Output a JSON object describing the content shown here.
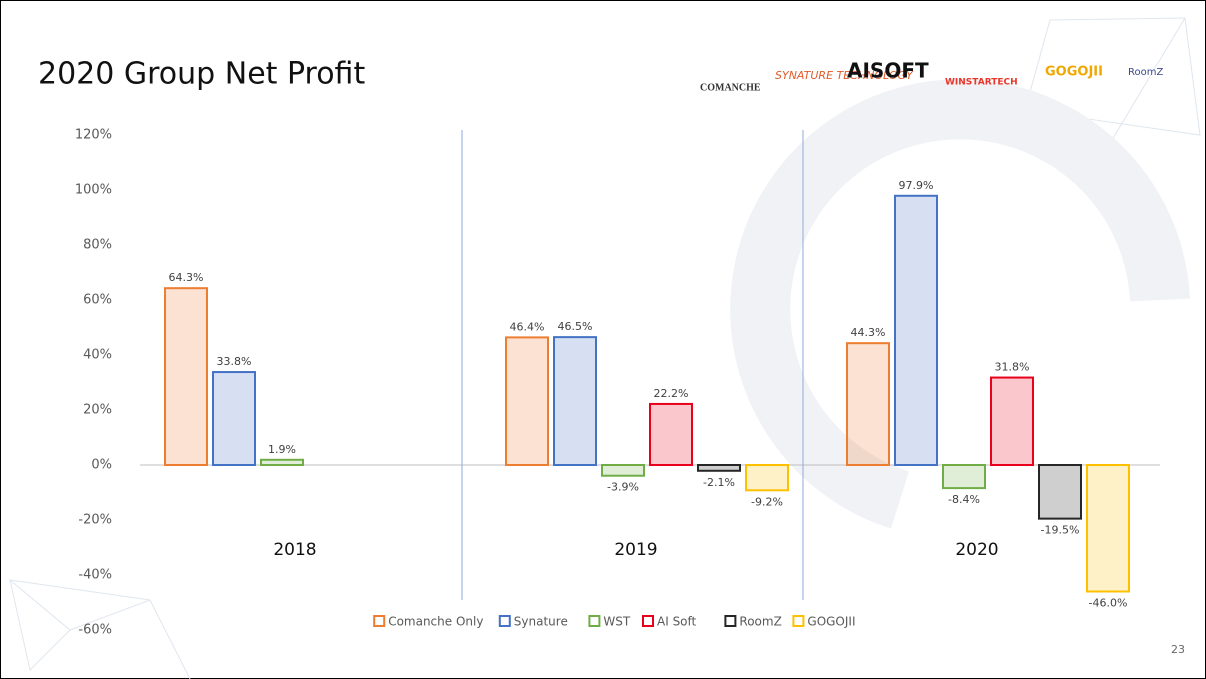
{
  "title": "2020 Group Net Profit",
  "logos": [
    "COMANCHE",
    "SYNATURE TECHNOLOGY",
    "AISOFT",
    "WINSTARTECH",
    "GOGOJII",
    "RoomZ"
  ],
  "page_number": "23",
  "chart_data": {
    "type": "bar",
    "categories": [
      "2018",
      "2019",
      "2020"
    ],
    "series": [
      {
        "name": "Comanche Only",
        "color": "#ed7d31",
        "values": [
          64.3,
          46.4,
          44.3
        ],
        "value_labels": [
          "64.3%",
          "46.4%",
          "44.3%"
        ]
      },
      {
        "name": "Synature",
        "color": "#4472c4",
        "values": [
          33.8,
          46.5,
          97.9
        ],
        "value_labels": [
          "33.8%",
          "46.5%",
          "97.9%"
        ]
      },
      {
        "name": "WST",
        "color": "#70ad47",
        "values": [
          1.9,
          -3.9,
          -8.4
        ],
        "value_labels": [
          "1.9%",
          "-3.9%",
          "-8.4%"
        ]
      },
      {
        "name": "AI Soft",
        "color": "#e8001c",
        "values": [
          null,
          22.2,
          31.8
        ],
        "value_labels": [
          null,
          "22.2%",
          "31.8%"
        ]
      },
      {
        "name": "RoomZ",
        "color": "#262626",
        "values": [
          null,
          -2.1,
          -19.5
        ],
        "value_labels": [
          null,
          "-2.1%",
          "-19.5%"
        ]
      },
      {
        "name": "GOGOJII",
        "color": "#ffc000",
        "values": [
          null,
          -9.2,
          -46.0
        ],
        "value_labels": [
          null,
          "-9.2%",
          "-46.0%"
        ]
      }
    ],
    "ylim": [
      -60,
      120
    ],
    "yticks": [
      {
        "value": -60,
        "label": "-60%"
      },
      {
        "value": -40,
        "label": "-40%"
      },
      {
        "value": -20,
        "label": "-20%"
      },
      {
        "value": 0,
        "label": "0%"
      },
      {
        "value": 20,
        "label": "20%"
      },
      {
        "value": 40,
        "label": "40%"
      },
      {
        "value": 60,
        "label": "60%"
      },
      {
        "value": 80,
        "label": "80%"
      },
      {
        "value": 100,
        "label": "100%"
      },
      {
        "value": 120,
        "label": "120%"
      }
    ],
    "legend": "bottom"
  }
}
